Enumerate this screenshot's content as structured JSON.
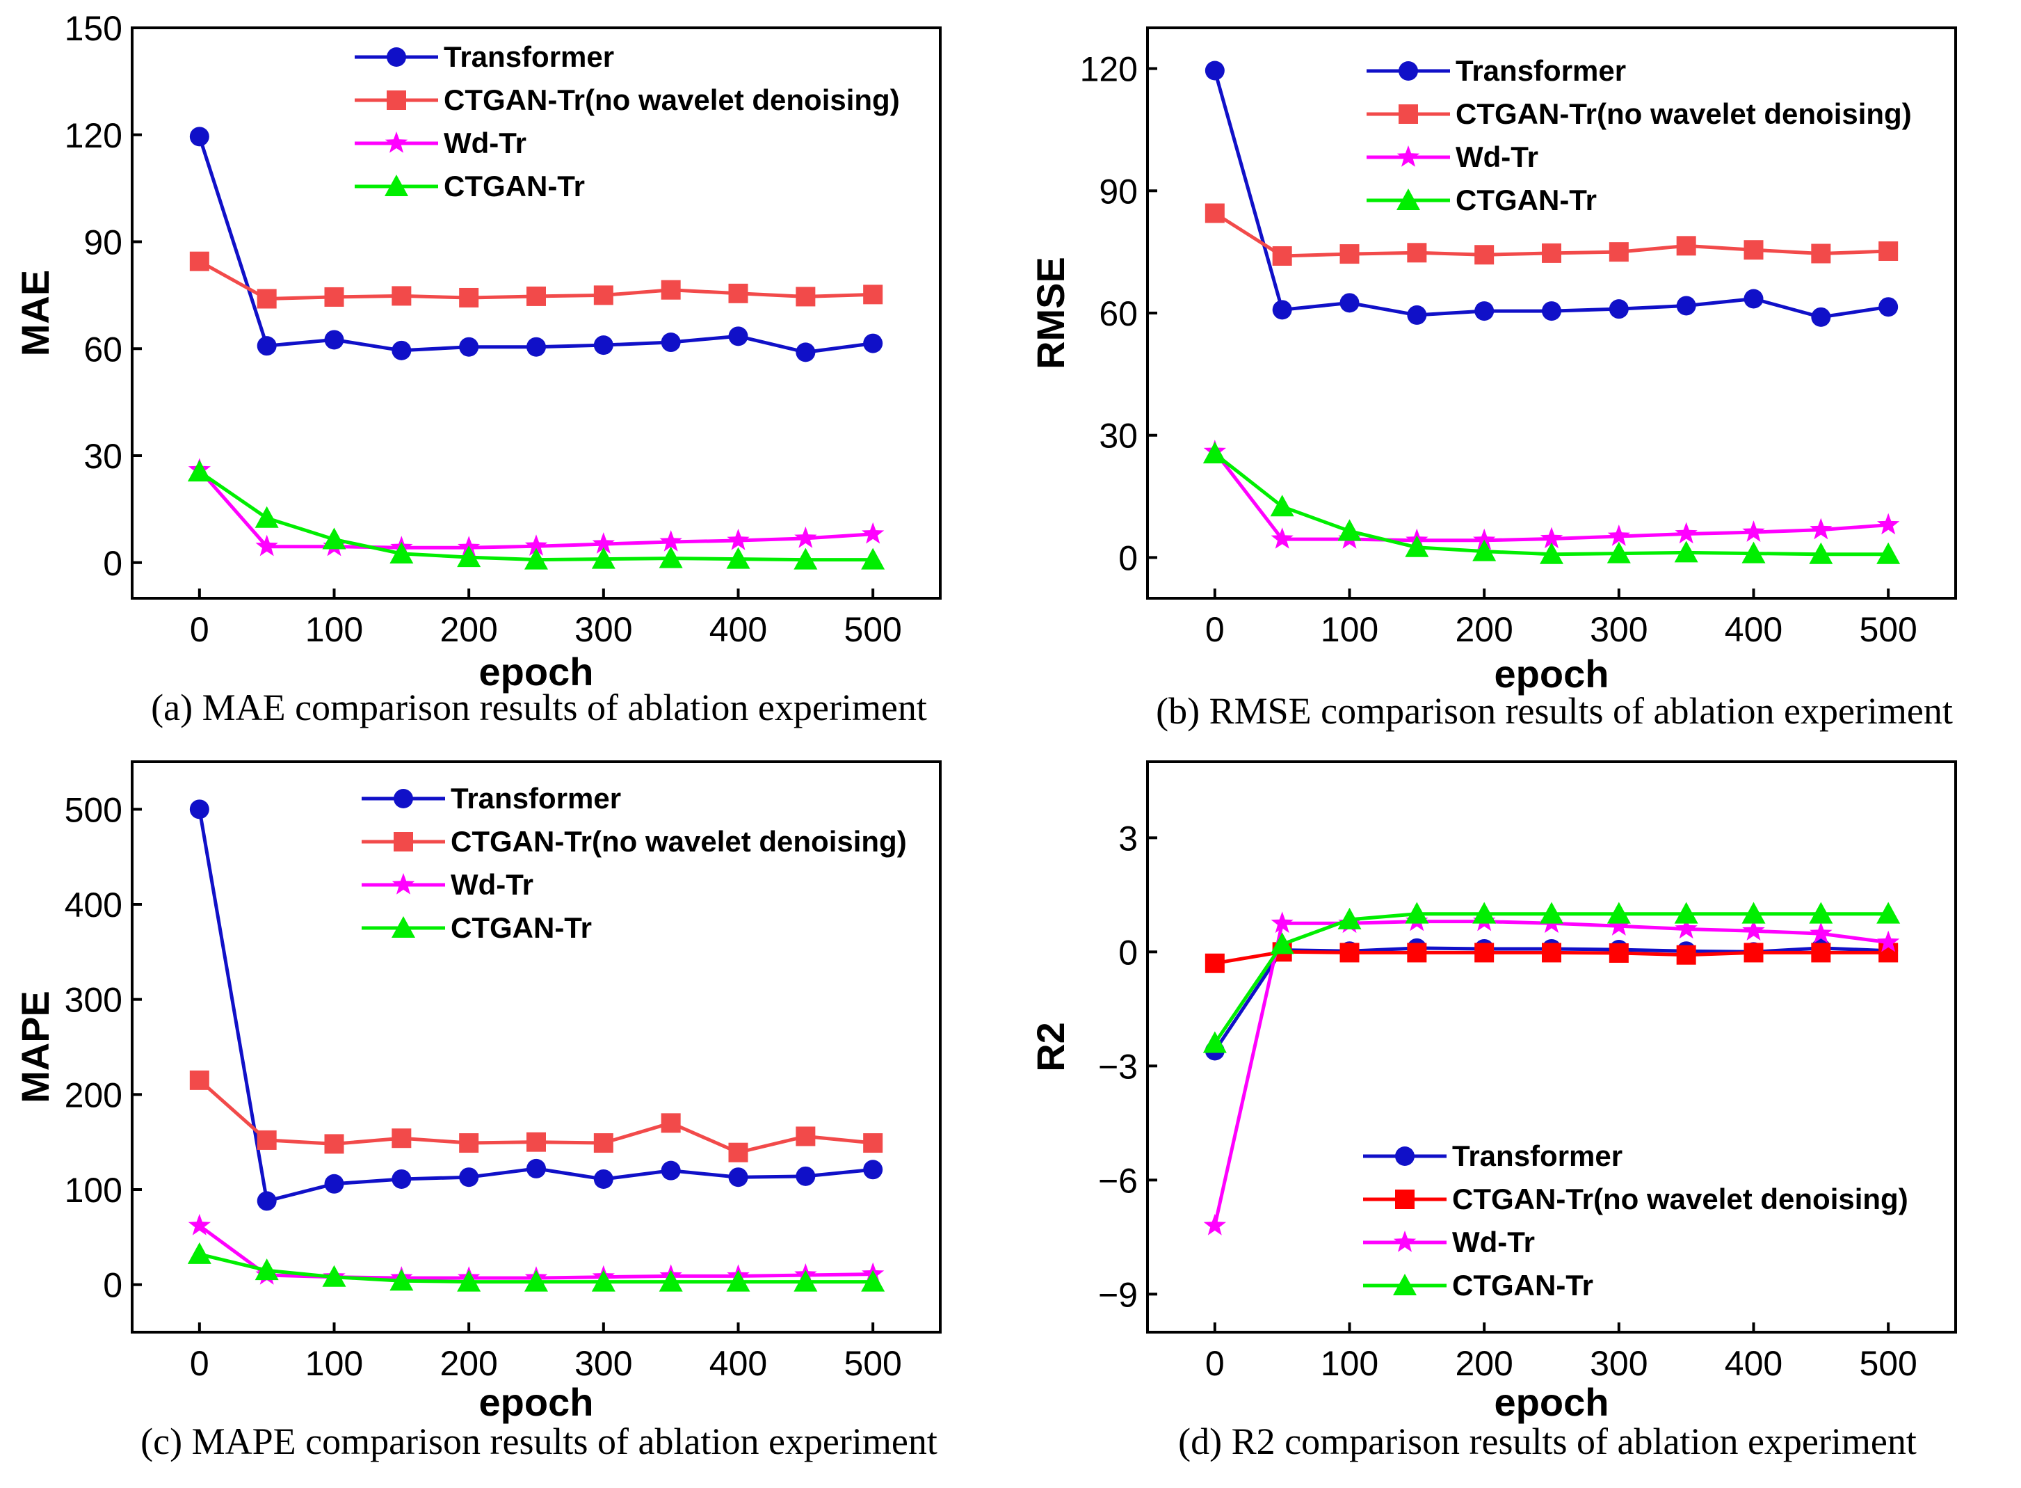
{
  "figure": {
    "captions": [
      "(a) MAE comparison results of ablation experiment",
      "(b) RMSE comparison results of ablation experiment",
      "(c) MAPE comparison results of ablation experiment",
      "(d) R2 comparison results of ablation experiment"
    ]
  },
  "chart_data": [
    {
      "type": "line",
      "title": "",
      "caption": "(a) MAE comparison results of ablation experiment",
      "xlabel": "epoch",
      "ylabel": "MAE",
      "x": [
        0,
        50,
        100,
        150,
        200,
        250,
        300,
        350,
        400,
        450,
        500
      ],
      "xticks": [
        0,
        100,
        200,
        300,
        400,
        500
      ],
      "xlim": [
        -50,
        550
      ],
      "yticks": [
        0,
        30,
        60,
        90,
        120,
        150
      ],
      "ylim": [
        -10,
        150
      ],
      "legend_position": "top",
      "series": [
        {
          "name": "Transformer",
          "color": "#1010c8",
          "marker": "circle",
          "values": [
            119.5,
            60.8,
            62.5,
            59.5,
            60.5,
            60.5,
            61,
            61.8,
            63.5,
            59,
            61.5
          ]
        },
        {
          "name": "CTGAN-Tr(no wavelet denoising)",
          "color": "#f24a4a",
          "marker": "square",
          "values": [
            84.5,
            74,
            74.5,
            74.8,
            74.3,
            74.7,
            75,
            76.5,
            75.5,
            74.6,
            75.2
          ]
        },
        {
          "name": "Wd-Tr",
          "color": "#ff00ff",
          "marker": "star",
          "values": [
            26,
            4.5,
            4.5,
            4.2,
            4.2,
            4.6,
            5.2,
            5.8,
            6.2,
            6.8,
            8
          ]
        },
        {
          "name": "CTGAN-Tr",
          "color": "#00ee00",
          "marker": "triangle",
          "values": [
            25.5,
            12.5,
            6.5,
            2.5,
            1.5,
            0.8,
            1,
            1.2,
            1,
            0.8,
            0.8
          ]
        }
      ]
    },
    {
      "type": "line",
      "title": "",
      "caption": "(b) RMSE comparison results of ablation experiment",
      "xlabel": "epoch",
      "ylabel": "RMSE",
      "x": [
        0,
        50,
        100,
        150,
        200,
        250,
        300,
        350,
        400,
        450,
        500
      ],
      "xticks": [
        0,
        100,
        200,
        300,
        400,
        500
      ],
      "xlim": [
        -50,
        550
      ],
      "yticks": [
        0,
        30,
        60,
        90,
        120
      ],
      "ylim": [
        -10,
        130
      ],
      "legend_position": "top",
      "series": [
        {
          "name": "Transformer",
          "color": "#1010c8",
          "marker": "circle",
          "values": [
            119.5,
            60.8,
            62.5,
            59.5,
            60.5,
            60.5,
            61,
            61.8,
            63.5,
            59,
            61.5
          ]
        },
        {
          "name": "CTGAN-Tr(no wavelet denoising)",
          "color": "#f24a4a",
          "marker": "square",
          "values": [
            84.5,
            74,
            74.5,
            74.8,
            74.3,
            74.7,
            75,
            76.5,
            75.5,
            74.6,
            75.2
          ]
        },
        {
          "name": "Wd-Tr",
          "color": "#ff00ff",
          "marker": "star",
          "values": [
            26,
            4.5,
            4.5,
            4.2,
            4.2,
            4.6,
            5.2,
            5.8,
            6.2,
            6.8,
            8
          ]
        },
        {
          "name": "CTGAN-Tr",
          "color": "#00ee00",
          "marker": "triangle",
          "values": [
            25.5,
            12.5,
            6.5,
            2.5,
            1.5,
            0.8,
            1,
            1.2,
            1,
            0.8,
            0.8
          ]
        }
      ]
    },
    {
      "type": "line",
      "title": "",
      "caption": "(c) MAPE comparison results of ablation experiment",
      "xlabel": "epoch",
      "ylabel": "MAPE",
      "x": [
        0,
        50,
        100,
        150,
        200,
        250,
        300,
        350,
        400,
        450,
        500
      ],
      "xticks": [
        0,
        100,
        200,
        300,
        400,
        500
      ],
      "xlim": [
        -50,
        550
      ],
      "yticks": [
        0,
        100,
        200,
        300,
        400,
        500
      ],
      "ylim": [
        -50,
        550
      ],
      "legend_position": "top",
      "series": [
        {
          "name": "Transformer",
          "color": "#1010c8",
          "marker": "circle",
          "values": [
            500,
            88,
            106,
            111,
            113,
            122,
            111,
            120,
            113,
            114,
            121
          ]
        },
        {
          "name": "CTGAN-Tr(no wavelet denoising)",
          "color": "#f24a4a",
          "marker": "square",
          "values": [
            215,
            152,
            148,
            154,
            149,
            150,
            149,
            170,
            139,
            156,
            149
          ]
        },
        {
          "name": "Wd-Tr",
          "color": "#ff00ff",
          "marker": "star",
          "values": [
            62,
            10,
            8,
            7,
            7,
            7,
            8,
            9,
            9,
            10,
            11
          ]
        },
        {
          "name": "CTGAN-Tr",
          "color": "#00ee00",
          "marker": "triangle",
          "values": [
            32,
            15,
            8,
            4,
            3,
            3,
            3,
            3,
            3,
            3,
            3
          ]
        }
      ]
    },
    {
      "type": "line",
      "title": "",
      "caption": "(d) R2 comparison results of ablation experiment",
      "xlabel": "epoch",
      "ylabel": "R2",
      "x": [
        0,
        50,
        100,
        150,
        200,
        250,
        300,
        350,
        400,
        450,
        500
      ],
      "xticks": [
        0,
        100,
        200,
        300,
        400,
        500
      ],
      "xlim": [
        -50,
        550
      ],
      "yticks": [
        3,
        0,
        -3,
        -6,
        -9
      ],
      "ytick_labels": [
        "3",
        "0",
        "−3",
        "−6",
        "−9"
      ],
      "ylim": [
        -10,
        5
      ],
      "legend_position": "bottom",
      "series": [
        {
          "name": "Transformer",
          "color": "#1010c8",
          "marker": "circle",
          "values": [
            -2.6,
            0.05,
            0.02,
            0.1,
            0.08,
            0.08,
            0.06,
            0.02,
            0,
            0.1,
            0.03
          ]
        },
        {
          "name": "CTGAN-Tr(no wavelet denoising)",
          "color": "#ff0000",
          "marker": "square",
          "values": [
            -0.3,
            0,
            -0.02,
            -0.02,
            -0.02,
            -0.02,
            -0.03,
            -0.08,
            -0.02,
            -0.02,
            -0.02
          ]
        },
        {
          "name": "Wd-Tr",
          "color": "#ff00ff",
          "marker": "star",
          "values": [
            -7.2,
            0.75,
            0.75,
            0.8,
            0.8,
            0.75,
            0.68,
            0.6,
            0.55,
            0.48,
            0.25
          ]
        },
        {
          "name": "CTGAN-Tr",
          "color": "#00ee00",
          "marker": "triangle",
          "values": [
            -2.4,
            0.2,
            0.85,
            1,
            1,
            1,
            1,
            1,
            1,
            1,
            1
          ]
        }
      ]
    }
  ]
}
